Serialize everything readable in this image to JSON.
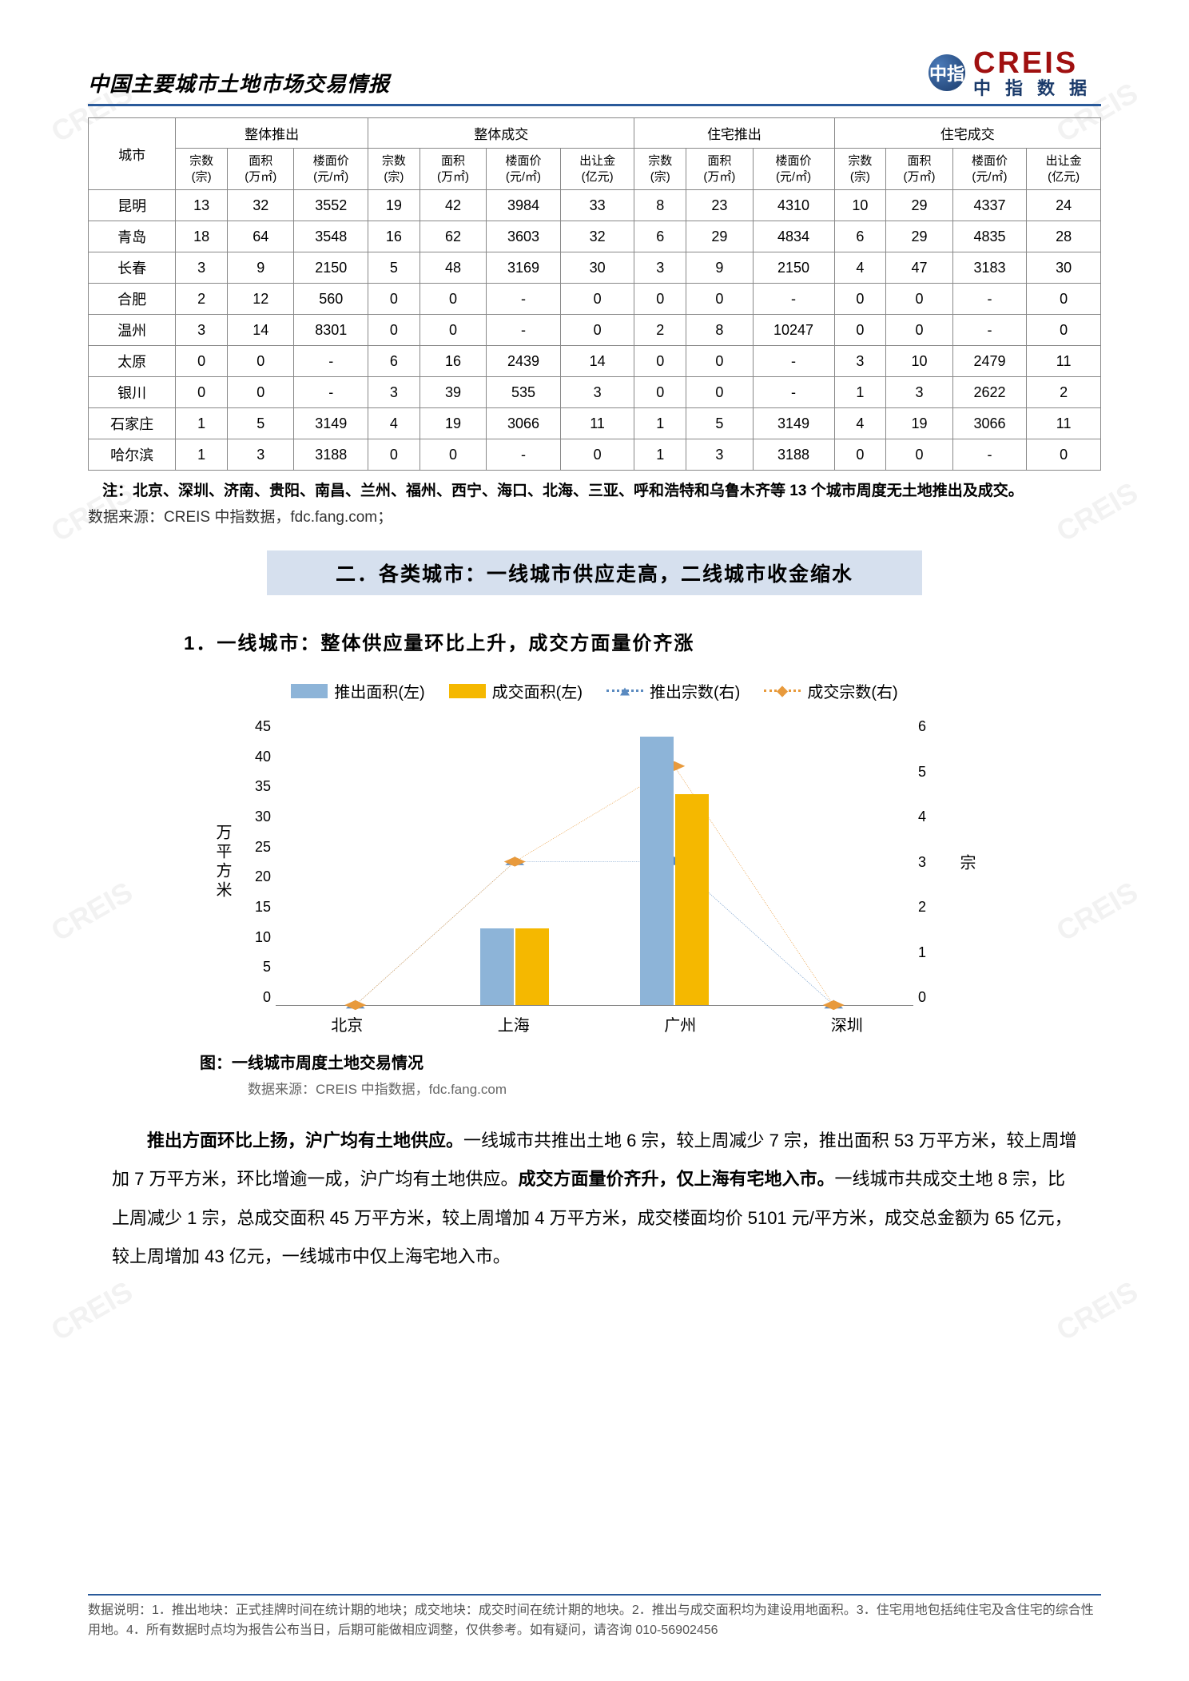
{
  "header": {
    "title": "中国主要城市土地市场交易情报",
    "logo_en": "CREIS",
    "logo_cn": "中指数据",
    "logo_badge": "中指"
  },
  "table": {
    "group_headers": [
      "城市",
      "整体推出",
      "整体成交",
      "住宅推出",
      "住宅成交"
    ],
    "sub_headers": {
      "count": "宗数\n(宗)",
      "area": "面积\n(万㎡)",
      "price": "楼面价\n(元/㎡)",
      "money": "出让金\n(亿元)"
    },
    "rows": [
      {
        "city": "昆明",
        "c": [
          13,
          32,
          3552,
          19,
          42,
          3984,
          33,
          8,
          23,
          4310,
          10,
          29,
          4337,
          24
        ]
      },
      {
        "city": "青岛",
        "c": [
          18,
          64,
          3548,
          16,
          62,
          3603,
          32,
          6,
          29,
          4834,
          6,
          29,
          4835,
          28
        ]
      },
      {
        "city": "长春",
        "c": [
          3,
          9,
          2150,
          5,
          48,
          3169,
          30,
          3,
          9,
          2150,
          4,
          47,
          3183,
          30
        ]
      },
      {
        "city": "合肥",
        "c": [
          2,
          12,
          560,
          0,
          0,
          "-",
          0,
          0,
          0,
          "-",
          0,
          0,
          "-",
          0
        ]
      },
      {
        "city": "温州",
        "c": [
          3,
          14,
          8301,
          0,
          0,
          "-",
          0,
          2,
          8,
          10247,
          0,
          0,
          "-",
          0
        ]
      },
      {
        "city": "太原",
        "c": [
          0,
          0,
          "-",
          6,
          16,
          2439,
          14,
          0,
          0,
          "-",
          3,
          10,
          2479,
          11
        ]
      },
      {
        "city": "银川",
        "c": [
          0,
          0,
          "-",
          3,
          39,
          535,
          3,
          0,
          0,
          "-",
          1,
          3,
          2622,
          2
        ]
      },
      {
        "city": "石家庄",
        "c": [
          1,
          5,
          3149,
          4,
          19,
          3066,
          11,
          1,
          5,
          3149,
          4,
          19,
          3066,
          11
        ]
      },
      {
        "city": "哈尔滨",
        "c": [
          1,
          3,
          3188,
          0,
          0,
          "-",
          0,
          1,
          3,
          3188,
          0,
          0,
          "-",
          0
        ]
      }
    ],
    "note": "注：北京、深圳、济南、贵阳、南昌、兰州、福州、西宁、海口、北海、三亚、呼和浩特和乌鲁木齐等 13 个城市周度无土地推出及成交。",
    "source": "数据来源：CREIS 中指数据，fdc.fang.com；"
  },
  "section2": {
    "banner": "二．各类城市：一线城市供应走高，二线城市收金缩水",
    "sub": "1．一线城市：整体供应量环比上升，成交方面量价齐涨"
  },
  "chart": {
    "legend": {
      "bar1": "推出面积(左)",
      "bar2": "成交面积(左)",
      "line1": "推出宗数(右)",
      "line2": "成交宗数(右)"
    },
    "colors": {
      "bar1": "#8db4d8",
      "bar2": "#f5b800",
      "line1": "#5a8ac0",
      "line2": "#e89a3c"
    },
    "y_left": {
      "label": "万平方米",
      "max": 45,
      "step": 5
    },
    "y_right": {
      "label": "宗",
      "max": 6,
      "step": 1
    },
    "categories": [
      "北京",
      "上海",
      "广州",
      "深圳"
    ],
    "bar1_values": [
      0,
      12,
      42,
      0
    ],
    "bar2_values": [
      0,
      12,
      33,
      0
    ],
    "line1_values": [
      0,
      3,
      3,
      0
    ],
    "line2_values": [
      0,
      3,
      5,
      0
    ],
    "caption": "图：一线城市周度土地交易情况",
    "source": "数据来源：CREIS 中指数据，fdc.fang.com"
  },
  "paragraph": "推出方面环比上扬，沪广均有土地供应。一线城市共推出土地 6 宗，较上周减少 7 宗，推出面积 53 万平方米，较上周增加 7 万平方米，环比增逾一成，沪广均有土地供应。成交方面量价齐升，仅上海有宅地入市。一线城市共成交土地 8 宗，比上周减少 1 宗，总成交面积 45 万平方米，较上周增加 4 万平方米，成交楼面均价 5101 元/平方米，成交总金额为 65 亿元，较上周增加 43 亿元，一线城市中仅上海宅地入市。",
  "para_bold1": "推出方面环比上扬，沪广均有土地供应。",
  "para_bold2": "成交方面量价齐升，仅上海有宅地入市。",
  "footer": "数据说明：1．推出地块：正式挂牌时间在统计期的地块；成交地块：成交时间在统计期的地块。2．推出与成交面积均为建设用地面积。3．住宅用地包括纯住宅及含住宅的综合性用地。4．所有数据时点均为报告公布当日，后期可能做相应调整，仅供参考。如有疑问，请咨询 010-56902456"
}
